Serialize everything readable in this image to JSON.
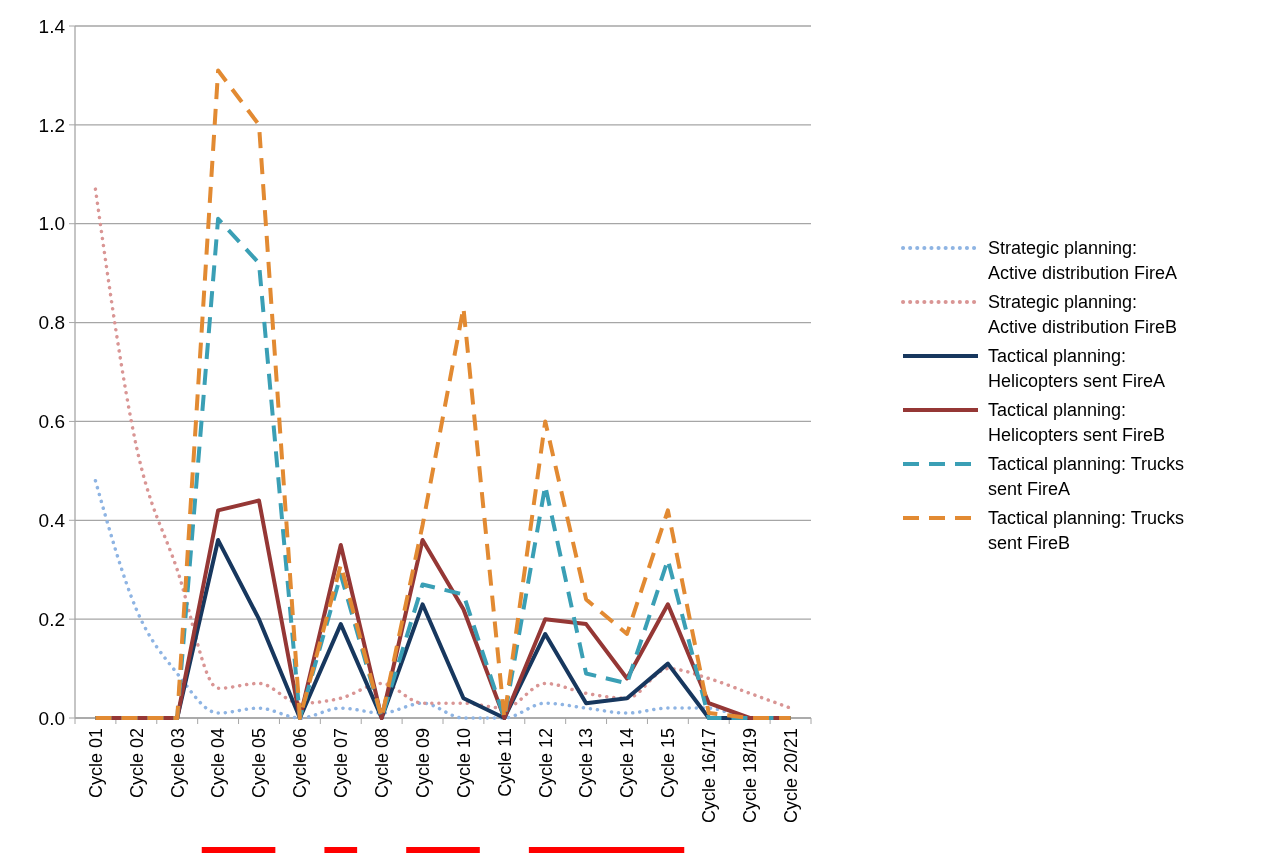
{
  "chart_data": {
    "type": "line",
    "categories": [
      "Cycle 01",
      "Cycle 02",
      "Cycle 03",
      "Cycle 04",
      "Cycle 05",
      "Cycle 06",
      "Cycle 07",
      "Cycle 08",
      "Cycle 09",
      "Cycle 10",
      "Cycle 11",
      "Cycle 12",
      "Cycle 13",
      "Cycle 14",
      "Cycle 15",
      "Cycle 16/17",
      "Cycle 18/19",
      "Cycle 20/21"
    ],
    "ylim": [
      0,
      1.4
    ],
    "yticks": [
      {
        "value": 0,
        "label": "0.0"
      },
      {
        "value": 0.2,
        "label": "0.2"
      },
      {
        "value": 0.4,
        "label": "0.4"
      },
      {
        "value": 0.6,
        "label": "0.6"
      },
      {
        "value": 0.8,
        "label": "0.8"
      },
      {
        "value": 1,
        "label": "1.0"
      },
      {
        "value": 1.2,
        "label": "1.2"
      },
      {
        "value": 1.4,
        "label": "1.4"
      }
    ],
    "grid": "y",
    "legend": "right",
    "series": [
      {
        "name": "Strategic planning: Active distribution FireA",
        "color": "#8eb4e3",
        "line_style": "dotted",
        "values": [
          0.48,
          0.22,
          0.09,
          0.01,
          0.02,
          0.0,
          0.02,
          0.01,
          0.03,
          0.0,
          0.0,
          0.03,
          0.02,
          0.01,
          0.02,
          0.02,
          0.0,
          0.0
        ]
      },
      {
        "name": "Strategic planning: Active distribution FireB",
        "color": "#d99594",
        "line_style": "dotted",
        "values": [
          1.07,
          0.55,
          0.3,
          0.06,
          0.07,
          0.03,
          0.04,
          0.07,
          0.03,
          0.03,
          0.02,
          0.07,
          0.05,
          0.04,
          0.1,
          0.08,
          0.05,
          0.02
        ]
      },
      {
        "name": "Tactical planning: Helicopters sent FireA",
        "color": "#17375e",
        "line_style": "solid",
        "values": [
          0,
          0,
          0,
          0.36,
          0.2,
          0,
          0.19,
          0,
          0.23,
          0.04,
          0,
          0.17,
          0.03,
          0.04,
          0.11,
          0,
          0,
          0
        ]
      },
      {
        "name": "Tactical planning: Helicopters sent FireB",
        "color": "#953735",
        "line_style": "solid",
        "values": [
          0,
          0,
          0,
          0.42,
          0.44,
          0,
          0.35,
          0,
          0.36,
          0.22,
          0,
          0.2,
          0.19,
          0.08,
          0.23,
          0.03,
          0,
          0
        ]
      },
      {
        "name": "Tactical planning: Trucks sent FireA",
        "color": "#3a9fb5",
        "line_style": "dashed",
        "values": [
          0,
          0,
          0,
          1.01,
          0.92,
          0,
          0.29,
          0,
          0.27,
          0.25,
          0,
          0.47,
          0.09,
          0.07,
          0.32,
          0,
          0,
          0
        ]
      },
      {
        "name": "Tactical planning: Trucks sent FireB",
        "color": "#e28a32",
        "line_style": "dashed",
        "values": [
          0,
          0,
          0,
          1.31,
          1.2,
          0,
          0.31,
          0,
          0.39,
          0.83,
          0,
          0.6,
          0.24,
          0.17,
          0.42,
          0.01,
          0,
          0
        ]
      }
    ]
  }
}
